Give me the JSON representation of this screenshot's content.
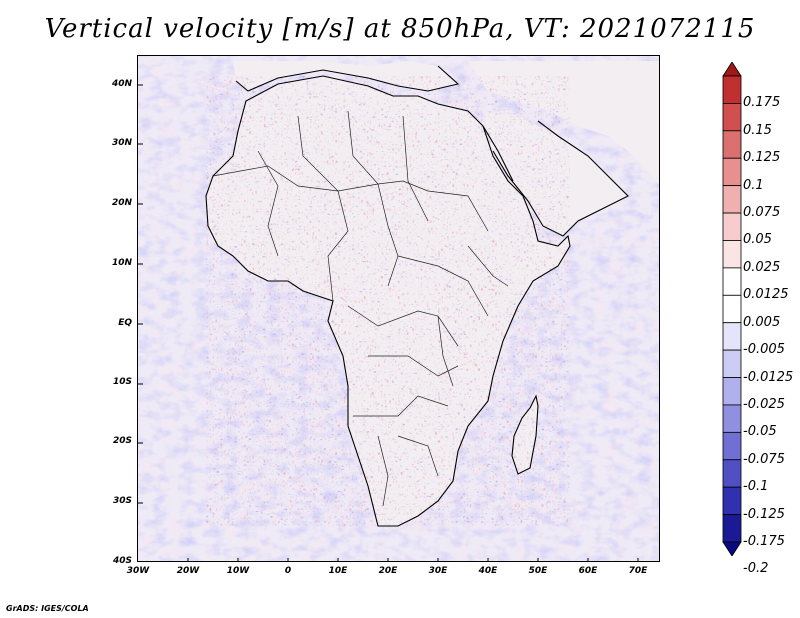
{
  "title": "Vertical velocity [m/s] at 850hPa, VT: 2021072115",
  "credit": "GrADS: IGES/COLA",
  "map": {
    "lat_range": [
      -40,
      45
    ],
    "lon_range": [
      -30,
      75
    ],
    "lat_labels": [
      "40N",
      "30N",
      "20N",
      "10N",
      "EQ",
      "10S",
      "20S",
      "30S",
      "40S"
    ],
    "lon_labels": [
      "30W",
      "20W",
      "10W",
      "0",
      "10E",
      "20E",
      "30E",
      "40E",
      "50E",
      "60E",
      "70E"
    ]
  },
  "colorbar": {
    "labels": [
      "0.175",
      "0.15",
      "0.125",
      "0.1",
      "0.075",
      "0.05",
      "0.025",
      "0.0125",
      "0.005",
      "-0.005",
      "-0.0125",
      "-0.025",
      "-0.05",
      "-0.075",
      "-0.1",
      "-0.125",
      "-0.175",
      "-0.2"
    ],
    "colors": [
      "#a01818",
      "#c03030",
      "#d05050",
      "#dc7070",
      "#e89090",
      "#f0b0b0",
      "#f6cccc",
      "#fbe4e4",
      "#ffffff",
      "#ffffff",
      "#e4e4fb",
      "#ccccf4",
      "#b0b0ec",
      "#9090e0",
      "#7070d4",
      "#5050c4",
      "#3030b0",
      "#1a1a96",
      "#0a0a80"
    ]
  }
}
